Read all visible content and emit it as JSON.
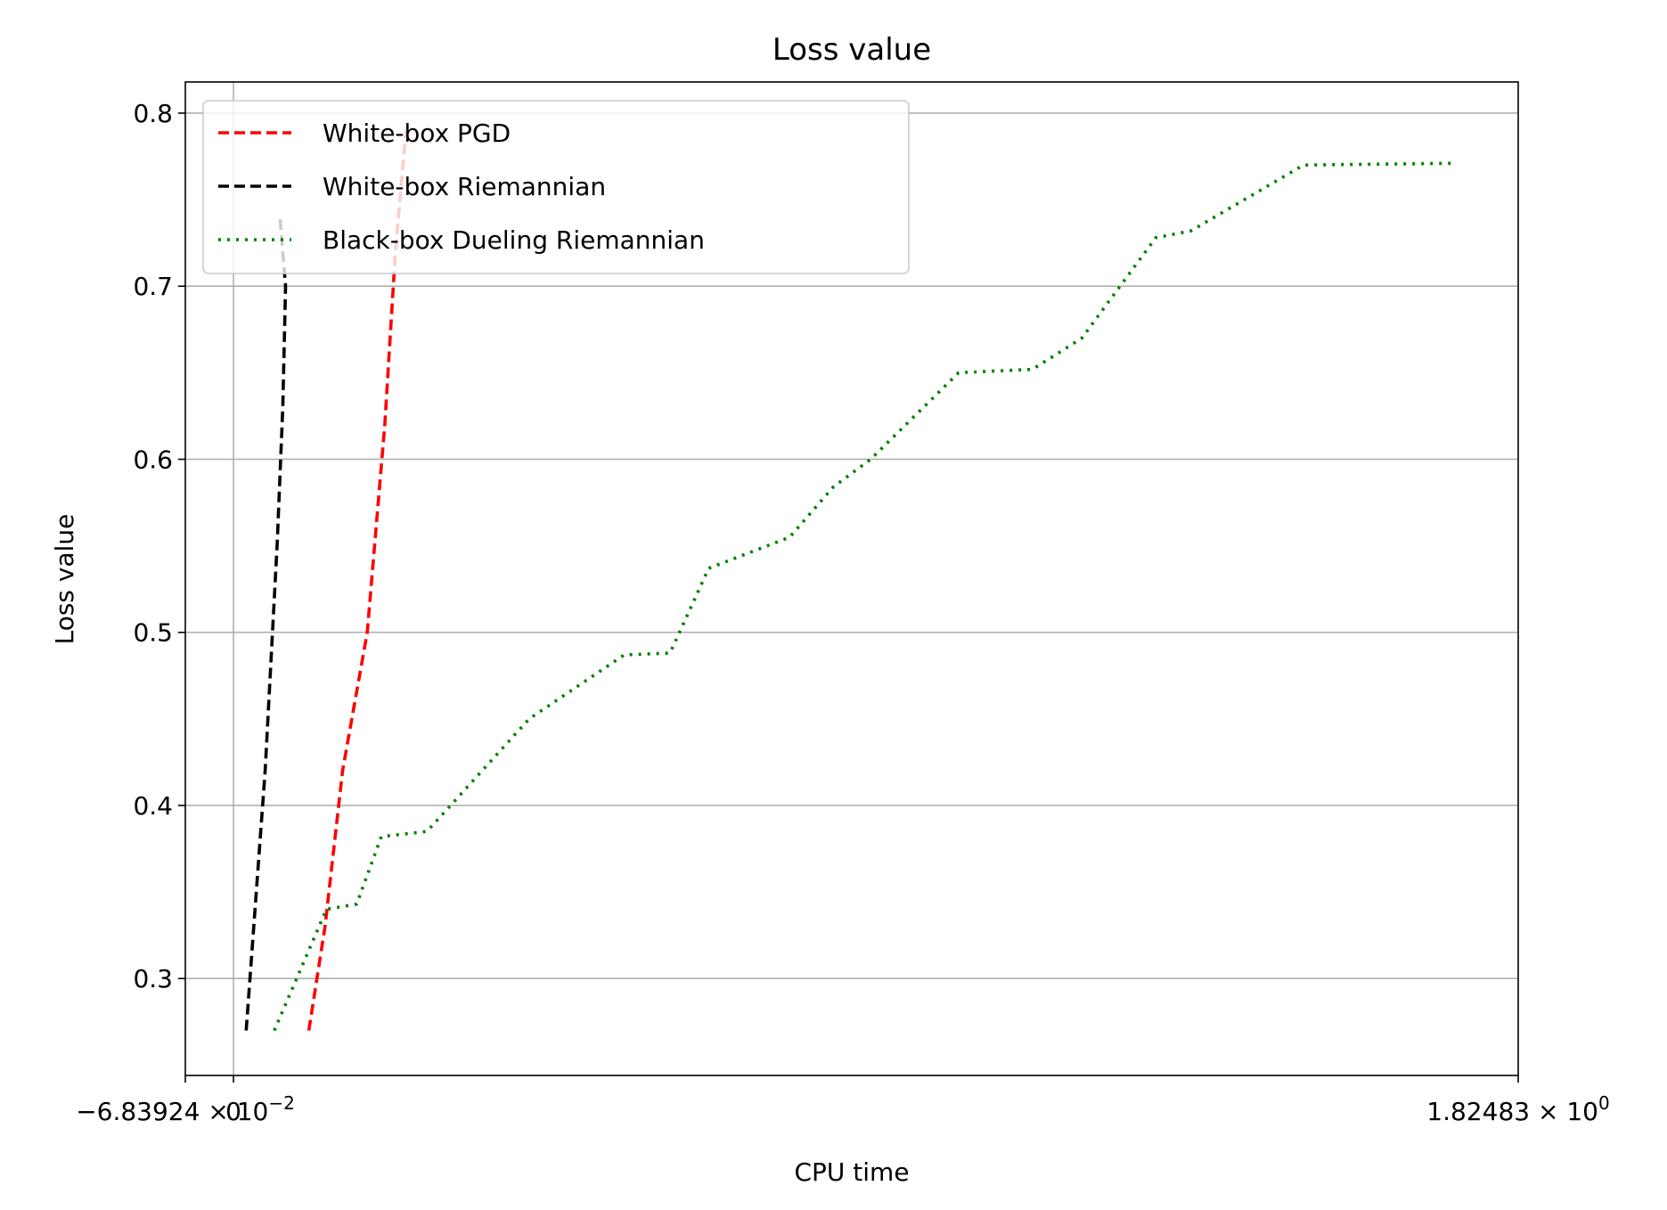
{
  "chart_data": {
    "type": "line",
    "title": "Loss value",
    "xlabel": "CPU time",
    "ylabel": "Loss value",
    "xlim": [
      -0.0684,
      1.82483
    ],
    "ylim": [
      0.244,
      0.818
    ],
    "grid": true,
    "legend_position": "upper-left",
    "x_ticks": [
      {
        "value": -0.0684,
        "label": "−6.83924 × 10",
        "exp": "−2"
      },
      {
        "value": 0.0,
        "label": "0",
        "exp": ""
      },
      {
        "value": 1.82483,
        "label": "1.82483 × 10",
        "exp": "0"
      }
    ],
    "y_ticks": [
      {
        "value": 0.3,
        "label": "0.3"
      },
      {
        "value": 0.4,
        "label": "0.4"
      },
      {
        "value": 0.5,
        "label": "0.5"
      },
      {
        "value": 0.6,
        "label": "0.6"
      },
      {
        "value": 0.7,
        "label": "0.7"
      },
      {
        "value": 0.8,
        "label": "0.8"
      }
    ],
    "series": [
      {
        "name": "White-box PGD",
        "color": "#ff0000",
        "style": "dashed",
        "points": [
          [
            0.107,
            0.27
          ],
          [
            0.13,
            0.33
          ],
          [
            0.155,
            0.42
          ],
          [
            0.19,
            0.5
          ],
          [
            0.215,
            0.62
          ],
          [
            0.23,
            0.72
          ],
          [
            0.245,
            0.79
          ]
        ]
      },
      {
        "name": "White-box Riemannian",
        "color": "#000000",
        "style": "dashed",
        "points": [
          [
            0.018,
            0.27
          ],
          [
            0.045,
            0.42
          ],
          [
            0.062,
            0.55
          ],
          [
            0.07,
            0.63
          ],
          [
            0.074,
            0.7
          ],
          [
            0.066,
            0.74
          ]
        ]
      },
      {
        "name": "Black-box Dueling Riemannian",
        "color": "#008000",
        "style": "dotted",
        "points": [
          [
            0.058,
            0.27
          ],
          [
            0.132,
            0.34
          ],
          [
            0.175,
            0.343
          ],
          [
            0.21,
            0.382
          ],
          [
            0.275,
            0.385
          ],
          [
            0.42,
            0.45
          ],
          [
            0.555,
            0.487
          ],
          [
            0.62,
            0.488
          ],
          [
            0.675,
            0.537
          ],
          [
            0.79,
            0.555
          ],
          [
            0.852,
            0.584
          ],
          [
            0.905,
            0.6
          ],
          [
            1.03,
            0.65
          ],
          [
            1.135,
            0.652
          ],
          [
            1.205,
            0.67
          ],
          [
            1.31,
            0.728
          ],
          [
            1.36,
            0.732
          ],
          [
            1.52,
            0.77
          ],
          [
            1.73,
            0.771
          ]
        ]
      }
    ]
  }
}
